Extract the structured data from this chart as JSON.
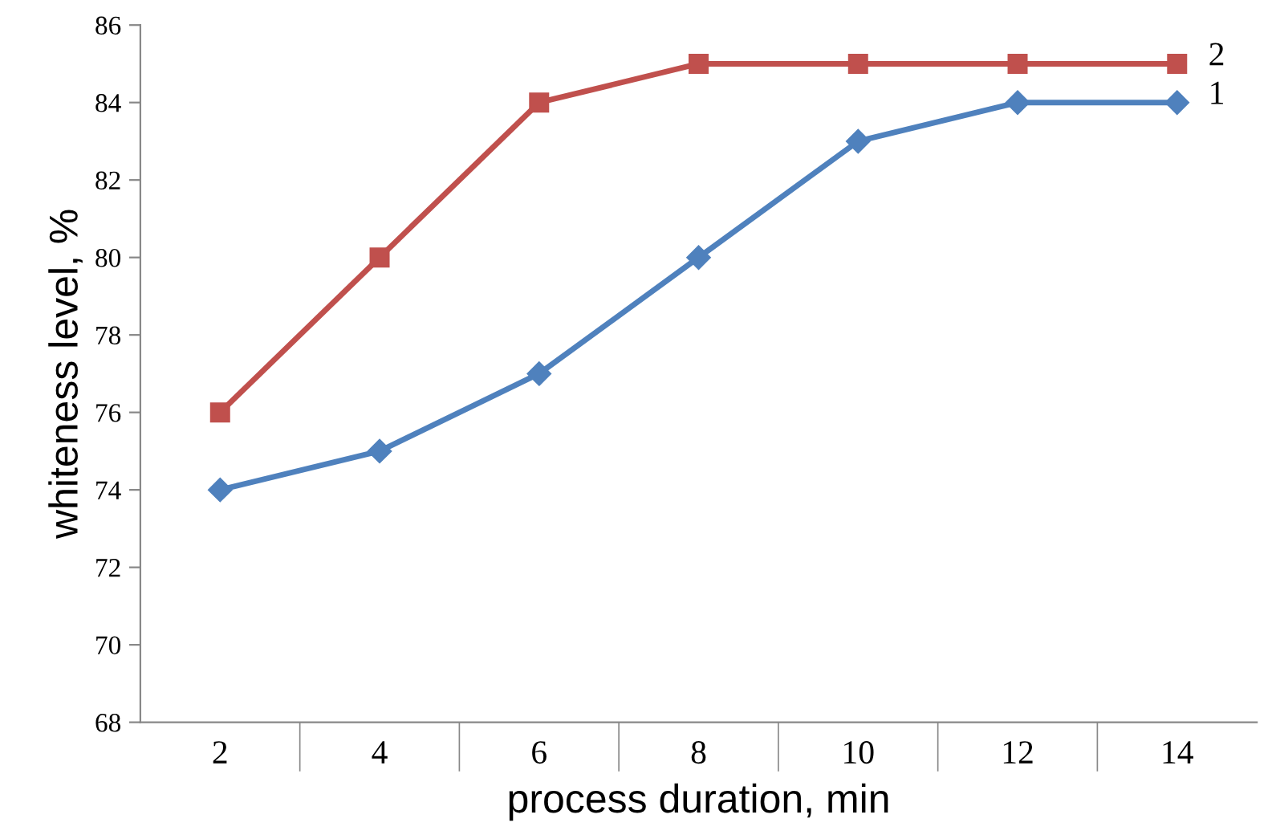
{
  "chart_data": {
    "type": "line",
    "xlabel": "process duration, min",
    "ylabel": "whiteness level, %",
    "categories": [
      "2",
      "4",
      "6",
      "8",
      "10",
      "12",
      "14"
    ],
    "series": [
      {
        "name": "1",
        "color": "#4f81bd",
        "marker": "diamond",
        "values": [
          74,
          75,
          77,
          80,
          83,
          84,
          84
        ]
      },
      {
        "name": "2",
        "color": "#c0504d",
        "marker": "square",
        "values": [
          76,
          80,
          84,
          85,
          85,
          85,
          85
        ]
      }
    ],
    "ylim": [
      68,
      86
    ],
    "yticks": [
      68,
      70,
      72,
      74,
      76,
      78,
      80,
      82,
      84,
      86
    ],
    "grid": false,
    "legend": false,
    "line_style": "solid"
  }
}
